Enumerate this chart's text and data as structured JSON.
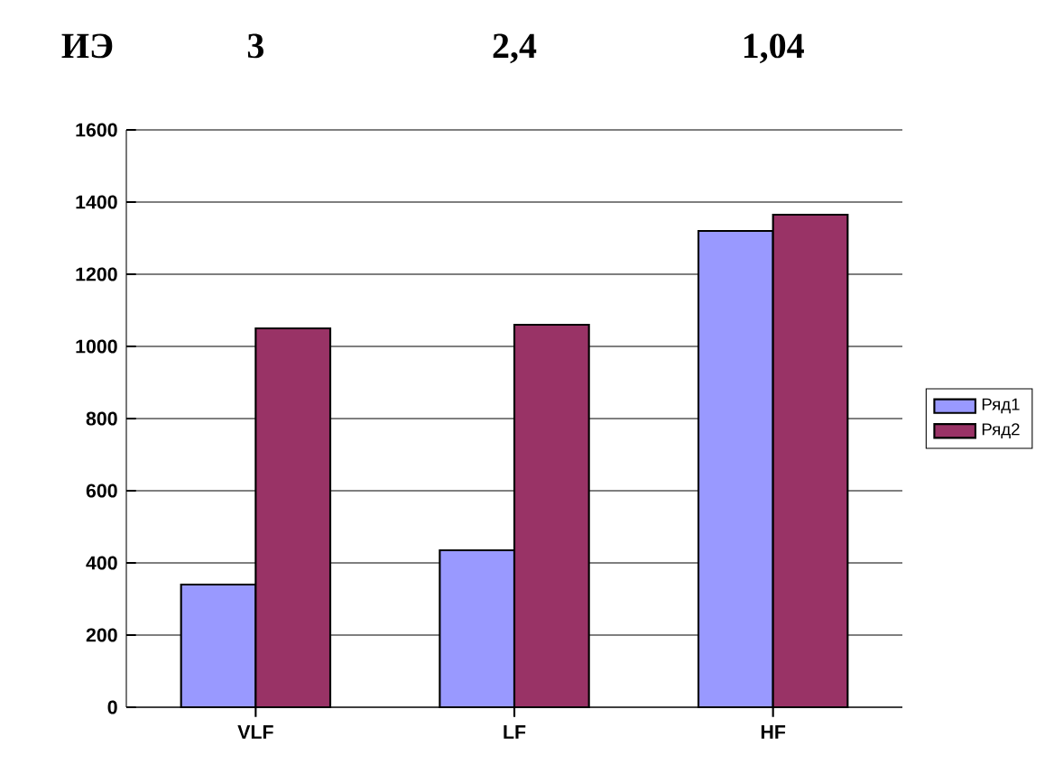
{
  "chart_data": {
    "type": "bar",
    "annotations": [
      "ИЭ",
      "3",
      "2,4",
      "1,04"
    ],
    "categories": [
      "VLF",
      "LF",
      "HF"
    ],
    "series": [
      {
        "name": "Ряд1",
        "color": "#9999ff",
        "values": [
          340,
          435,
          1320
        ]
      },
      {
        "name": "Ряд2",
        "color": "#993366",
        "values": [
          1050,
          1060,
          1365
        ]
      }
    ],
    "ylim": [
      0,
      1600
    ],
    "yticks": [
      0,
      200,
      400,
      600,
      800,
      1000,
      1200,
      1400,
      1600
    ],
    "grid": "y",
    "legend": "right"
  }
}
